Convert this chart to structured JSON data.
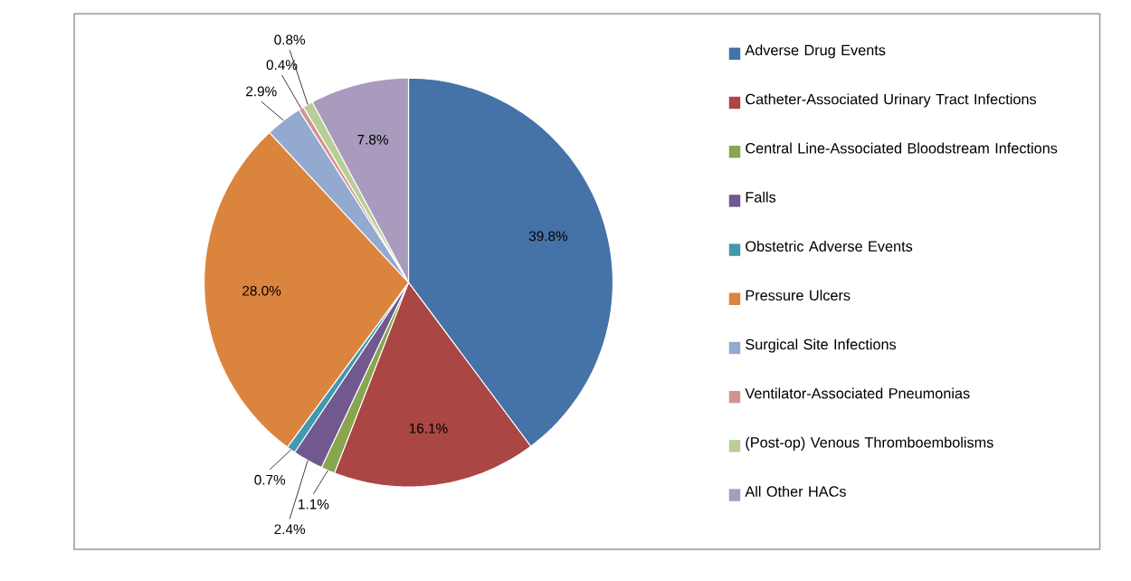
{
  "chart_data": {
    "type": "pie",
    "categories": [
      "Adverse Drug Events",
      "Catheter-Associated Urinary Tract Infections",
      "Central Line-Associated Bloodstream Infections",
      "Falls",
      "Obstetric Adverse Events",
      "Pressure Ulcers",
      "Surgical Site Infections",
      "Ventilator-Associated Pneumonias",
      "(Post-op) Venous Thromboembolisms",
      "All Other HACs"
    ],
    "values": [
      39.8,
      16.1,
      1.1,
      2.4,
      0.7,
      28.0,
      2.9,
      0.4,
      0.8,
      7.8
    ],
    "value_labels": [
      "39.8%",
      "16.1%",
      "1.1%",
      "2.4%",
      "0.7%",
      "28.0%",
      "2.9%",
      "0.4%",
      "0.8%",
      "7.8%"
    ],
    "colors": [
      "#4572a7",
      "#aa4643",
      "#89a54e",
      "#71588f",
      "#4198af",
      "#db843d",
      "#93a9cf",
      "#d19392",
      "#b9cd96",
      "#a99bbd"
    ],
    "legend": "right"
  }
}
